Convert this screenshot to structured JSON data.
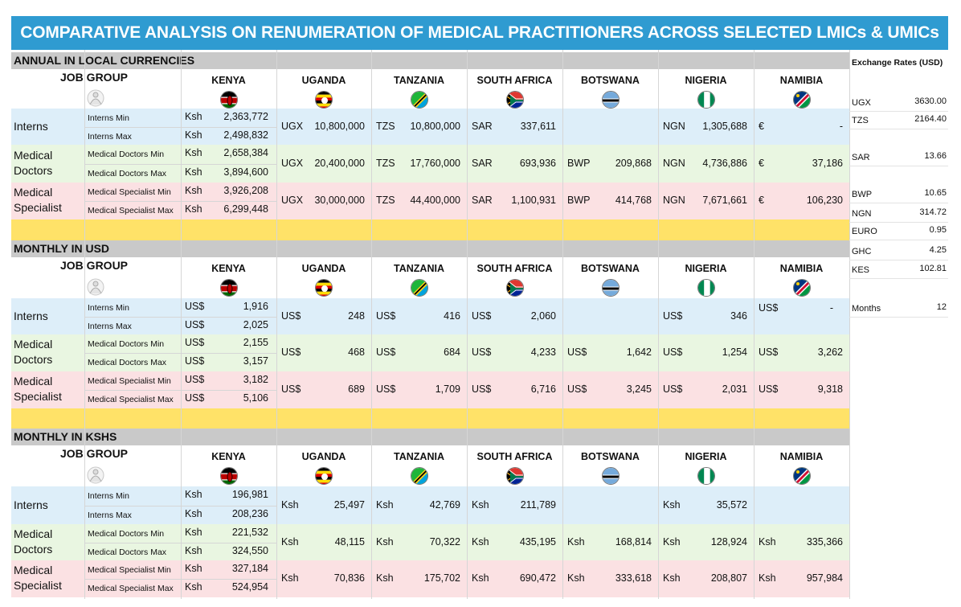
{
  "title": "COMPARATIVE ANALYSIS ON RENUMERATION OF MEDICAL PRACTITIONERS ACROSS SELECTED LMICs & UMICs",
  "job_group": "JOB GROUP",
  "countries": [
    "KENYA",
    "UGANDA",
    "TANZANIA",
    "SOUTH AFRICA",
    "BOTSWANA",
    "NIGERIA",
    "NAMIBIA"
  ],
  "groups": {
    "interns": "Interns",
    "doctors": "Medical Doctors",
    "specialist": "Medical Specialist"
  },
  "sub": [
    "Interns Min",
    "Interns Max",
    "Medical Doctors Min",
    "Medical Doctors Max",
    "Medical Specialist Min",
    "Medical Specialist Max"
  ],
  "annual": {
    "heading": "ANNUAL IN LOCAL CURRENCIES",
    "kenya": [
      [
        "Ksh",
        "2,363,772"
      ],
      [
        "Ksh",
        "2,498,832"
      ],
      [
        "Ksh",
        "2,658,384"
      ],
      [
        "Ksh",
        "3,894,600"
      ],
      [
        "Ksh",
        "3,926,208"
      ],
      [
        "Ksh",
        "6,299,448"
      ]
    ],
    "rows": [
      [
        [
          "UGX",
          "10,800,000"
        ],
        [
          "TZS",
          "10,800,000"
        ],
        [
          "SAR",
          "337,611"
        ],
        [
          "",
          ""
        ],
        [
          "NGN",
          "1,305,688"
        ],
        [
          "€",
          "-"
        ]
      ],
      [
        [
          "UGX",
          "20,400,000"
        ],
        [
          "TZS",
          "17,760,000"
        ],
        [
          "SAR",
          "693,936"
        ],
        [
          "BWP",
          "209,868"
        ],
        [
          "NGN",
          "4,736,886"
        ],
        [
          "€",
          "37,186"
        ]
      ],
      [
        [
          "UGX",
          "30,000,000"
        ],
        [
          "TZS",
          "44,400,000"
        ],
        [
          "SAR",
          "1,100,931"
        ],
        [
          "BWP",
          "414,768"
        ],
        [
          "NGN",
          "7,671,661"
        ],
        [
          "€",
          "106,230"
        ]
      ]
    ]
  },
  "usd": {
    "heading": "MONTHLY IN USD",
    "kenya": [
      [
        "US$",
        "1,916"
      ],
      [
        "US$",
        "2,025"
      ],
      [
        "US$",
        "2,155"
      ],
      [
        "US$",
        "3,157"
      ],
      [
        "US$",
        "3,182"
      ],
      [
        "US$",
        "5,106"
      ]
    ],
    "rows": [
      [
        [
          "US$",
          "248"
        ],
        [
          "US$",
          "416"
        ],
        [
          "US$",
          "2,060"
        ],
        [
          "",
          ""
        ],
        [
          "US$",
          "346"
        ],
        [
          "US$",
          "-"
        ]
      ],
      [
        [
          "US$",
          "468"
        ],
        [
          "US$",
          "684"
        ],
        [
          "US$",
          "4,233"
        ],
        [
          "US$",
          "1,642"
        ],
        [
          "US$",
          "1,254"
        ],
        [
          "US$",
          "3,262"
        ]
      ],
      [
        [
          "US$",
          "689"
        ],
        [
          "US$",
          "1,709"
        ],
        [
          "US$",
          "6,716"
        ],
        [
          "US$",
          "3,245"
        ],
        [
          "US$",
          "2,031"
        ],
        [
          "US$",
          "9,318"
        ]
      ]
    ]
  },
  "kshs": {
    "heading": "MONTHLY IN KSHS",
    "kenya": [
      [
        "Ksh",
        "196,981"
      ],
      [
        "Ksh",
        "208,236"
      ],
      [
        "Ksh",
        "221,532"
      ],
      [
        "Ksh",
        "324,550"
      ],
      [
        "Ksh",
        "327,184"
      ],
      [
        "Ksh",
        "524,954"
      ]
    ],
    "rows": [
      [
        [
          "Ksh",
          "25,497"
        ],
        [
          "Ksh",
          "42,769"
        ],
        [
          "Ksh",
          "211,789"
        ],
        [
          "",
          ""
        ],
        [
          "Ksh",
          "35,572"
        ],
        [
          "",
          ""
        ]
      ],
      [
        [
          "Ksh",
          "48,115"
        ],
        [
          "Ksh",
          "70,322"
        ],
        [
          "Ksh",
          "435,195"
        ],
        [
          "Ksh",
          "168,814"
        ],
        [
          "Ksh",
          "128,924"
        ],
        [
          "Ksh",
          "335,366"
        ]
      ],
      [
        [
          "Ksh",
          "70,836"
        ],
        [
          "Ksh",
          "175,702"
        ],
        [
          "Ksh",
          "690,472"
        ],
        [
          "Ksh",
          "333,618"
        ],
        [
          "Ksh",
          "208,807"
        ],
        [
          "Ksh",
          "957,984"
        ]
      ]
    ]
  },
  "exchange": {
    "title": "Exchange Rates (USD)",
    "rates": [
      [
        "UGX",
        "3630.00"
      ],
      [
        "TZS",
        "2164.40"
      ],
      [
        "SAR",
        "13.66"
      ],
      [
        "BWP",
        "10.65"
      ],
      [
        "NGN",
        "314.72"
      ],
      [
        "EURO",
        "0.95"
      ],
      [
        "GHC",
        "4.25"
      ],
      [
        "KES",
        "102.81"
      ],
      [
        "Months",
        "12"
      ]
    ]
  },
  "colors": {
    "title_bg": "#2f9bd1",
    "interns": "#ddeef9",
    "doctors": "#e9f6e1",
    "specialist": "#fbe1e3",
    "separator": "#ffe268",
    "section": "#c9c9c9"
  }
}
